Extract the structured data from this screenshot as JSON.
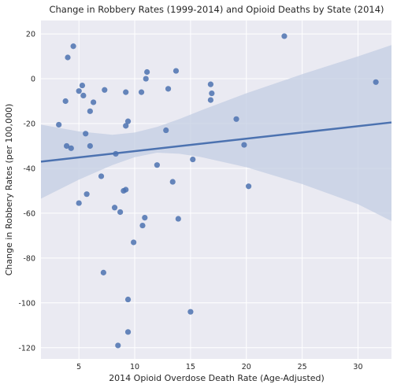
{
  "chart_data": {
    "type": "scatter",
    "title": "Change in Robbery Rates (1999-2014) and Opioid Deaths by State (2014)",
    "xlabel": "2014 Opioid Overdose Death Rate (Age-Adjusted)",
    "ylabel": "Change in Robbery Rates (per 100,000)",
    "xlim": [
      1.6,
      33
    ],
    "ylim": [
      -125,
      26
    ],
    "xticks": [
      5,
      10,
      15,
      20,
      25,
      30
    ],
    "yticks": [
      20,
      0,
      -20,
      -40,
      -60,
      -80,
      -100,
      -120
    ],
    "grid": true,
    "points": [
      {
        "x": 4.5,
        "y": 14.5
      },
      {
        "x": 4.0,
        "y": 9.5
      },
      {
        "x": 23.4,
        "y": 19.0
      },
      {
        "x": 31.6,
        "y": -1.5
      },
      {
        "x": 11.1,
        "y": 3.0
      },
      {
        "x": 13.7,
        "y": 3.5
      },
      {
        "x": 11.0,
        "y": 0.0
      },
      {
        "x": 5.3,
        "y": -3.0
      },
      {
        "x": 5.0,
        "y": -5.5
      },
      {
        "x": 5.4,
        "y": -7.5
      },
      {
        "x": 7.3,
        "y": -5.0
      },
      {
        "x": 9.2,
        "y": -6.0
      },
      {
        "x": 10.6,
        "y": -6.0
      },
      {
        "x": 13.0,
        "y": -4.5
      },
      {
        "x": 16.8,
        "y": -2.5
      },
      {
        "x": 16.9,
        "y": -6.5
      },
      {
        "x": 16.8,
        "y": -9.5
      },
      {
        "x": 3.8,
        "y": -10.0
      },
      {
        "x": 6.3,
        "y": -10.5
      },
      {
        "x": 6.0,
        "y": -14.5
      },
      {
        "x": 3.2,
        "y": -20.5
      },
      {
        "x": 9.4,
        "y": -19.0
      },
      {
        "x": 9.2,
        "y": -21.0
      },
      {
        "x": 5.6,
        "y": -24.5
      },
      {
        "x": 12.8,
        "y": -23.0
      },
      {
        "x": 19.1,
        "y": -18.0
      },
      {
        "x": 3.9,
        "y": -30.0
      },
      {
        "x": 4.3,
        "y": -31.0
      },
      {
        "x": 6.0,
        "y": -30.0
      },
      {
        "x": 8.3,
        "y": -33.5
      },
      {
        "x": 19.8,
        "y": -29.5
      },
      {
        "x": 15.2,
        "y": -36.0
      },
      {
        "x": 12.0,
        "y": -38.5
      },
      {
        "x": 7.0,
        "y": -43.5
      },
      {
        "x": 13.4,
        "y": -46.0
      },
      {
        "x": 20.2,
        "y": -48.0
      },
      {
        "x": 9.0,
        "y": -50.0
      },
      {
        "x": 9.2,
        "y": -49.5
      },
      {
        "x": 5.7,
        "y": -51.5
      },
      {
        "x": 5.0,
        "y": -55.5
      },
      {
        "x": 8.2,
        "y": -57.5
      },
      {
        "x": 8.7,
        "y": -59.5
      },
      {
        "x": 10.9,
        "y": -62.0
      },
      {
        "x": 13.9,
        "y": -62.5
      },
      {
        "x": 10.7,
        "y": -65.5
      },
      {
        "x": 9.9,
        "y": -73.0
      },
      {
        "x": 7.2,
        "y": -86.5
      },
      {
        "x": 9.4,
        "y": -98.5
      },
      {
        "x": 15.0,
        "y": -104.0
      },
      {
        "x": 9.4,
        "y": -113.0
      },
      {
        "x": 8.5,
        "y": -119.0
      }
    ],
    "regression": {
      "x": [
        1.6,
        33.0
      ],
      "y": [
        -37.0,
        -19.5
      ]
    },
    "confidence_band": {
      "x": [
        1.6,
        5,
        8,
        10,
        12,
        14,
        16,
        20,
        25,
        30,
        33
      ],
      "upper": [
        -20.5,
        -23.5,
        -25.0,
        -24.0,
        -21.5,
        -18.0,
        -14.0,
        -6.5,
        2.0,
        10.0,
        15.0
      ],
      "lower": [
        -53.5,
        -45.0,
        -38.5,
        -35.0,
        -33.0,
        -33.5,
        -35.0,
        -39.5,
        -47.0,
        -56.0,
        -63.5
      ]
    },
    "colors": {
      "background": "#eaeaf2",
      "grid": "#ffffff",
      "points": "#4c72b0",
      "line": "#4c72b0",
      "band": "#c3cde3"
    }
  }
}
